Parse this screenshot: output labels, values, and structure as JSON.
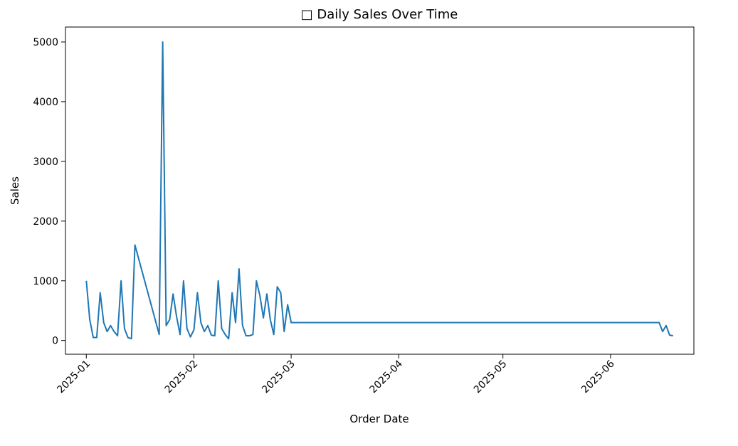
{
  "chart_data": {
    "type": "line",
    "title": "□ Daily Sales Over Time",
    "xlabel": "Order Date",
    "ylabel": "Sales",
    "xlim": [
      "2024-12-26",
      "2025-06-25"
    ],
    "ylim": [
      -230,
      5250
    ],
    "x_ticks": [
      "2025-01",
      "2025-02",
      "2025-03",
      "2025-04",
      "2025-05",
      "2025-06"
    ],
    "y_ticks": [
      0,
      1000,
      2000,
      3000,
      4000,
      5000
    ],
    "grid": false,
    "line_color": "#1f77b4",
    "series": [
      {
        "points": [
          [
            "2025-01-01",
            1000
          ],
          [
            "2025-01-02",
            350
          ],
          [
            "2025-01-03",
            50
          ],
          [
            "2025-01-04",
            50
          ],
          [
            "2025-01-05",
            800
          ],
          [
            "2025-01-06",
            300
          ],
          [
            "2025-01-07",
            150
          ],
          [
            "2025-01-08",
            250
          ],
          [
            "2025-01-09",
            150
          ],
          [
            "2025-01-10",
            80
          ],
          [
            "2025-01-11",
            1000
          ],
          [
            "2025-01-12",
            200
          ],
          [
            "2025-01-13",
            50
          ],
          [
            "2025-01-14",
            30
          ],
          [
            "2025-01-15",
            1600
          ],
          [
            "2025-01-22",
            100
          ],
          [
            "2025-01-23",
            5000
          ],
          [
            "2025-01-24",
            250
          ],
          [
            "2025-01-25",
            350
          ],
          [
            "2025-01-26",
            780
          ],
          [
            "2025-01-27",
            400
          ],
          [
            "2025-01-28",
            100
          ],
          [
            "2025-01-29",
            1000
          ],
          [
            "2025-01-30",
            200
          ],
          [
            "2025-01-31",
            60
          ],
          [
            "2025-02-01",
            180
          ],
          [
            "2025-02-02",
            800
          ],
          [
            "2025-02-03",
            300
          ],
          [
            "2025-02-04",
            150
          ],
          [
            "2025-02-05",
            250
          ],
          [
            "2025-02-06",
            90
          ],
          [
            "2025-02-07",
            80
          ],
          [
            "2025-02-08",
            1000
          ],
          [
            "2025-02-09",
            200
          ],
          [
            "2025-02-10",
            100
          ],
          [
            "2025-02-11",
            30
          ],
          [
            "2025-02-12",
            800
          ],
          [
            "2025-02-13",
            300
          ],
          [
            "2025-02-14",
            1200
          ],
          [
            "2025-02-15",
            250
          ],
          [
            "2025-02-16",
            80
          ],
          [
            "2025-02-17",
            80
          ],
          [
            "2025-02-18",
            100
          ],
          [
            "2025-02-19",
            1000
          ],
          [
            "2025-02-20",
            750
          ],
          [
            "2025-02-21",
            380
          ],
          [
            "2025-02-22",
            780
          ],
          [
            "2025-02-23",
            350
          ],
          [
            "2025-02-24",
            100
          ],
          [
            "2025-02-25",
            900
          ],
          [
            "2025-02-26",
            800
          ],
          [
            "2025-02-27",
            150
          ],
          [
            "2025-02-28",
            600
          ],
          [
            "2025-03-01",
            300
          ],
          [
            "2025-06-15",
            300
          ],
          [
            "2025-06-16",
            150
          ],
          [
            "2025-06-17",
            250
          ],
          [
            "2025-06-18",
            90
          ],
          [
            "2025-06-19",
            80
          ]
        ]
      }
    ]
  }
}
